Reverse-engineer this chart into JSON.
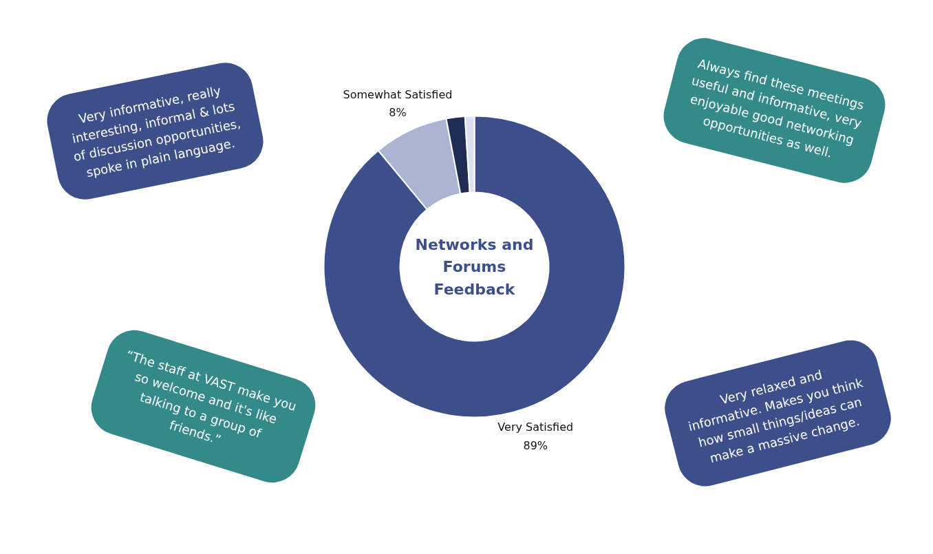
{
  "chart_data": {
    "type": "donut",
    "title": "Networks and Forums Feedback",
    "categories": [
      "Very Satisfied",
      "Somewhat Satisfied",
      null,
      null
    ],
    "values": [
      89,
      8,
      2,
      1
    ],
    "colors": [
      "#3d4f8a",
      "#aab5d3",
      "#1f2d55",
      "#dde1ee"
    ],
    "value_labels": [
      "89%",
      "8%",
      null,
      null
    ],
    "annotations": [
      "Very informative, really interesting, informal & lots of discussion opportunities, spoke in plain language.",
      "Always find these meetings useful and informative, very enjoyable good networking opportunities as well.",
      "“The staff at VAST make you so welcome and it's like talking to a group of friends.”",
      "Very relaxed and informative. Makes you think how small things/ideas can make a massive change."
    ]
  }
}
